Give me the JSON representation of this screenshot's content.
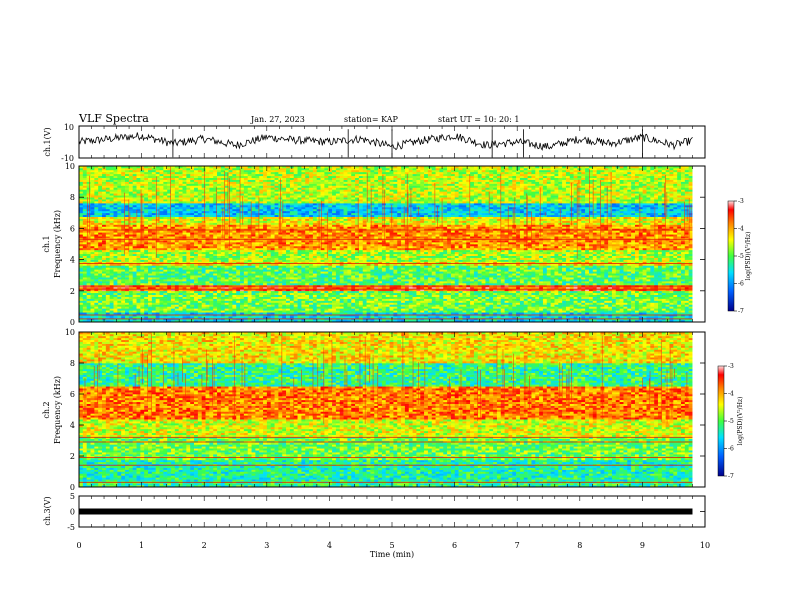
{
  "header": {
    "title": "VLF Spectra",
    "date": "Jan. 27, 2023",
    "station": "station= KAP",
    "start": "start UT =  10: 20: 1"
  },
  "colors": {
    "low": "#00008b",
    "mid_low": "#0080ff",
    "mid": "#00e0ff",
    "green": "#40ff40",
    "yellow": "#ffff00",
    "orange": "#ffa500",
    "high": "#ff0000",
    "top": "#ffffff",
    "trace": "#000000"
  },
  "chart_data": [
    {
      "type": "line",
      "title": "",
      "ylabel": "ch.1(V)",
      "xlim": [
        0,
        10
      ],
      "ylim": [
        -10,
        10
      ],
      "y_ticks": [
        "10",
        "-10"
      ],
      "series": [
        {
          "x": [
            0,
            0.5,
            1,
            1.5,
            2,
            2.5,
            3,
            3.5,
            4,
            4.5,
            5,
            5.5,
            6,
            6.5,
            7,
            7.5,
            8,
            8.5,
            9,
            9.5,
            9.8
          ],
          "y": [
            0,
            2,
            4,
            -1,
            2,
            -2,
            3,
            1,
            0,
            2,
            -3,
            1,
            4,
            -2,
            0,
            -3,
            2,
            -1,
            3,
            -2,
            1
          ]
        }
      ]
    },
    {
      "type": "heatmap",
      "ylabel": "ch.1\nFrequency (kHz)",
      "xlim": [
        0,
        10
      ],
      "ylim": [
        0,
        10
      ],
      "y_ticks": [
        "0",
        "2",
        "4",
        "6",
        "8",
        "10"
      ],
      "x_extent_min": 9.8,
      "colorbar": {
        "label": "log(PSD)(V²/Hz)",
        "ticks": [
          "-3",
          "-4",
          "-5",
          "-6",
          "-7"
        ],
        "range": [
          -7,
          -3
        ]
      },
      "bands": [
        {
          "from": 0,
          "to": 0.6,
          "level": -5.6
        },
        {
          "from": 0.6,
          "to": 2.0,
          "level": -4.9
        },
        {
          "from": 2.0,
          "to": 2.4,
          "level": -3.6
        },
        {
          "from": 2.4,
          "to": 3.6,
          "level": -5.0
        },
        {
          "from": 3.6,
          "to": 3.9,
          "level": -4.3
        },
        {
          "from": 3.9,
          "to": 4.6,
          "level": -4.7
        },
        {
          "from": 4.6,
          "to": 6.2,
          "level": -3.9
        },
        {
          "from": 6.2,
          "to": 6.8,
          "level": -4.4
        },
        {
          "from": 6.8,
          "to": 7.6,
          "level": -5.7
        },
        {
          "from": 7.6,
          "to": 10,
          "level": -4.6
        }
      ],
      "lines_khz": [
        0.2,
        0.45,
        2.1,
        2.3,
        3.75,
        5.3,
        5.9
      ]
    },
    {
      "type": "heatmap",
      "ylabel": "ch.2\nFrequency (kHz)",
      "xlim": [
        0,
        10
      ],
      "ylim": [
        0,
        10
      ],
      "y_ticks": [
        "0",
        "2",
        "4",
        "6",
        "8",
        "10"
      ],
      "x_extent_min": 9.8,
      "colorbar": {
        "label": "log(PSD)(V²/Hz)",
        "ticks": [
          "-3",
          "-4",
          "-5",
          "-6",
          "-7"
        ],
        "range": [
          -7,
          -3
        ]
      },
      "bands": [
        {
          "from": 0,
          "to": 0.4,
          "level": -5.2
        },
        {
          "from": 0.4,
          "to": 1.8,
          "level": -5.3
        },
        {
          "from": 1.8,
          "to": 3.2,
          "level": -4.9
        },
        {
          "from": 3.2,
          "to": 4.4,
          "level": -4.5
        },
        {
          "from": 4.4,
          "to": 6.5,
          "level": -3.8
        },
        {
          "from": 6.5,
          "to": 8.0,
          "level": -5.2
        },
        {
          "from": 8.0,
          "to": 10,
          "level": -4.3
        }
      ],
      "lines_khz": [
        0.3,
        1.4,
        1.9,
        2.9,
        3.2
      ]
    },
    {
      "type": "line",
      "ylabel": "ch.3(V)",
      "xlabel": "Time (min)",
      "xlim": [
        0,
        10
      ],
      "ylim": [
        -5,
        5
      ],
      "y_ticks": [
        "5",
        "0",
        "-5"
      ],
      "x_ticks": [
        "0",
        "1",
        "2",
        "3",
        "4",
        "5",
        "6",
        "7",
        "8",
        "9",
        "10"
      ],
      "series": [
        {
          "x": [
            0,
            9.8
          ],
          "y": [
            0,
            0
          ]
        }
      ]
    }
  ]
}
